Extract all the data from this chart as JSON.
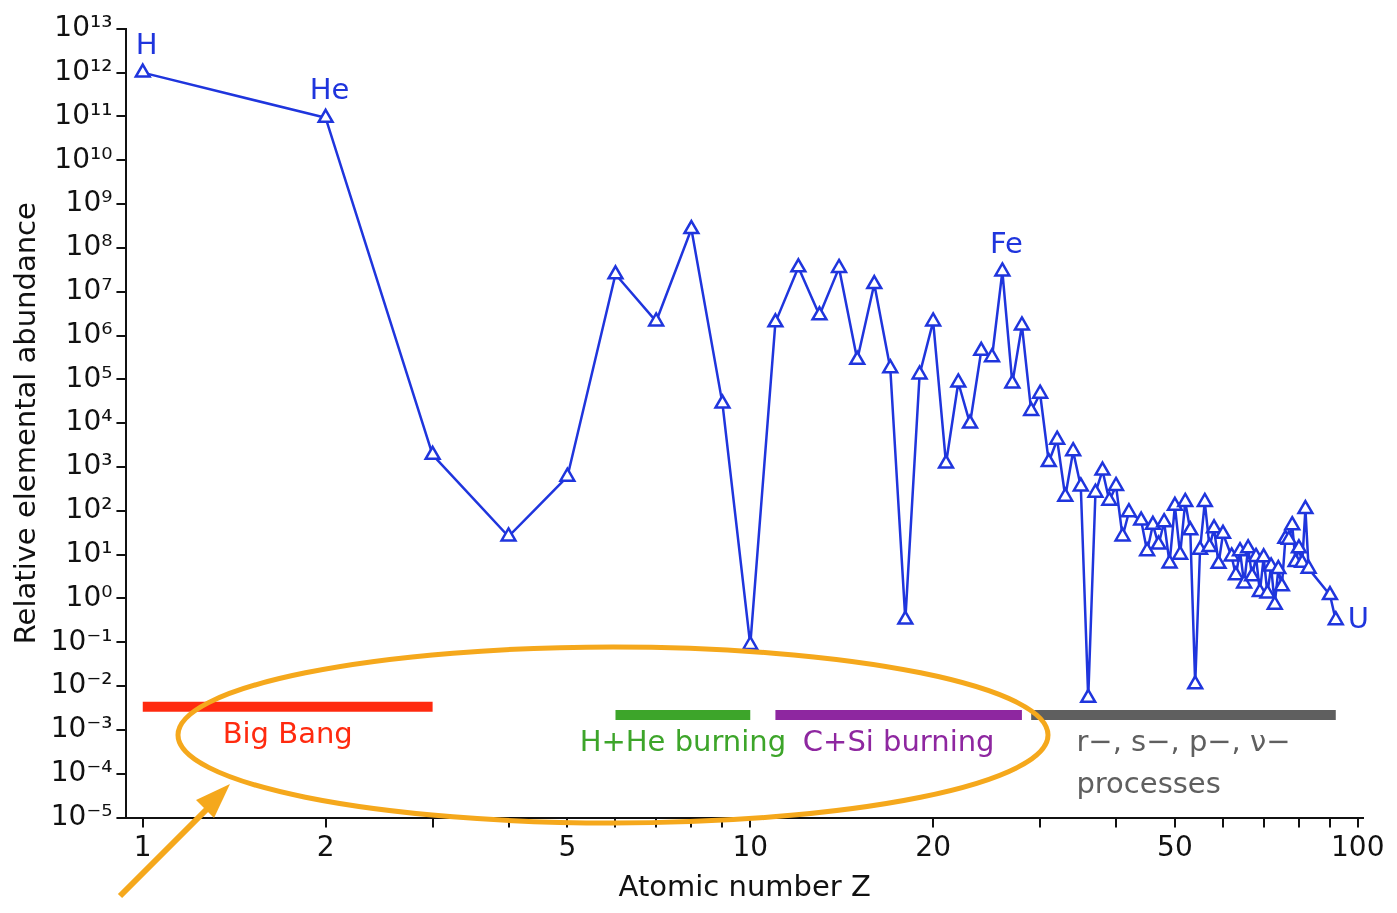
{
  "chart_data": {
    "type": "line",
    "xlabel": "Atomic number Z",
    "ylabel": "Relative elemental abundance",
    "log": "xy",
    "xlim": [
      0.94,
      102
    ],
    "ylim": [
      1e-05,
      10000000000000.0
    ],
    "xticks": [
      1,
      2,
      {
        "value": 3,
        "label": null
      },
      {
        "value": 4,
        "label": null
      },
      5,
      {
        "value": 6,
        "label": null
      },
      {
        "value": 7,
        "label": null
      },
      {
        "value": 8,
        "label": null
      },
      {
        "value": 9,
        "label": null
      },
      10,
      20,
      {
        "value": 30,
        "label": null
      },
      {
        "value": 40,
        "label": null
      },
      50,
      {
        "value": 60,
        "label": null
      },
      {
        "value": 70,
        "label": null
      },
      {
        "value": 80,
        "label": null
      },
      {
        "value": 90,
        "label": null
      },
      100
    ],
    "yticks": [
      {
        "value": 1e-05,
        "label": "10⁻⁵"
      },
      {
        "value": 0.0001,
        "label": "10⁻⁴"
      },
      {
        "value": 0.001,
        "label": "10⁻³"
      },
      {
        "value": 0.01,
        "label": "10⁻²"
      },
      {
        "value": 0.1,
        "label": "10⁻¹"
      },
      {
        "value": 1,
        "label": "10⁰"
      },
      {
        "value": 10,
        "label": "10¹"
      },
      {
        "value": 100,
        "label": "10²"
      },
      {
        "value": 1000,
        "label": "10³"
      },
      {
        "value": 10000,
        "label": "10⁴"
      },
      {
        "value": 100000,
        "label": "10⁵"
      },
      {
        "value": 1000000,
        "label": "10⁶"
      },
      {
        "value": 10000000,
        "label": "10⁷"
      },
      {
        "value": 100000000,
        "label": "10⁸"
      },
      {
        "value": 1000000000,
        "label": "10⁹"
      },
      {
        "value": 10000000000,
        "label": "10¹⁰"
      },
      {
        "value": 100000000000,
        "label": "10¹¹"
      },
      {
        "value": 1000000000000,
        "label": "10¹²"
      },
      {
        "value": 10000000000000,
        "label": "10¹³"
      }
    ],
    "series": [
      {
        "color": "#1f35dd",
        "marker": "triangle",
        "line_style": "solid",
        "x": [
          1,
          2,
          3,
          4,
          5,
          6,
          7,
          8,
          9,
          10,
          11,
          12,
          13,
          14,
          15,
          16,
          17,
          18,
          19,
          20,
          21,
          22,
          23,
          24,
          25,
          26,
          27,
          28,
          29,
          30,
          31,
          32,
          33,
          34,
          35,
          36,
          37,
          38,
          39,
          40,
          41,
          42,
          44,
          45,
          46,
          47,
          48,
          49,
          50,
          51,
          52,
          53,
          54,
          55,
          56,
          57,
          58,
          59,
          60,
          62,
          63,
          64,
          65,
          66,
          67,
          68,
          69,
          70,
          71,
          72,
          73,
          74,
          75,
          76,
          77,
          78,
          79,
          80,
          81,
          82,
          83,
          90,
          92
        ],
        "values": [
          1000000000000.0,
          93000000000.0,
          1900,
          26,
          600,
          25000000.0,
          2100000.0,
          270000000.0,
          28000,
          0.087,
          2000000.0,
          36000000.0,
          2900000.0,
          35000000.0,
          280000,
          15000000.0,
          180000,
          0.33,
          130000,
          2100000.0,
          1200,
          85000,
          9800,
          450000,
          320000,
          29000000.0,
          81000,
          1700000.0,
          19000,
          47000,
          1300,
          4200,
          210,
          2300,
          360,
          0.0054,
          260,
          830,
          170,
          370,
          26,
          93,
          60,
          12,
          48,
          17,
          55,
          6.3,
          130,
          10,
          160,
          36,
          0.011,
          13,
          160,
          15,
          40,
          6.2,
          30,
          9.1,
          3.4,
          12,
          2.2,
          14,
          3.2,
          8.9,
          1.4,
          8.7,
          1.3,
          5.4,
          0.72,
          4.7,
          1.9,
          23,
          22,
          47,
          6.8,
          14,
          6.5,
          110,
          4.8,
          1.2,
          0.32
        ]
      },
      {
        "name": "Big Bang",
        "color": "#ff2a0f",
        "marker": "none",
        "x": [
          1,
          3
        ],
        "values": [
          0.0034,
          0.0034
        ]
      },
      {
        "name": "H+He burning",
        "color": "#3da52a",
        "marker": "none",
        "x": [
          6,
          10
        ],
        "values": [
          0.0022,
          0.0022
        ]
      },
      {
        "name": "C+Si burning",
        "color": "#8e27a0",
        "marker": "none",
        "x": [
          11,
          28
        ],
        "values": [
          0.0022,
          0.0022
        ]
      },
      {
        "name": "r−, s−, p−, ν− processes",
        "color": "#5f5f5f",
        "marker": "none",
        "x": [
          29,
          92
        ],
        "values": [
          0.0022,
          0.0022
        ]
      }
    ],
    "annotations": [
      {
        "text": "H",
        "x": 1,
        "y": 1000000000000.0
      },
      {
        "text": "He",
        "x": 2,
        "y": 93000000000.0
      },
      {
        "text": "Fe",
        "x": 26,
        "y": 29000000.0
      },
      {
        "text": "U",
        "x": 92,
        "y": 0.32
      }
    ]
  }
}
